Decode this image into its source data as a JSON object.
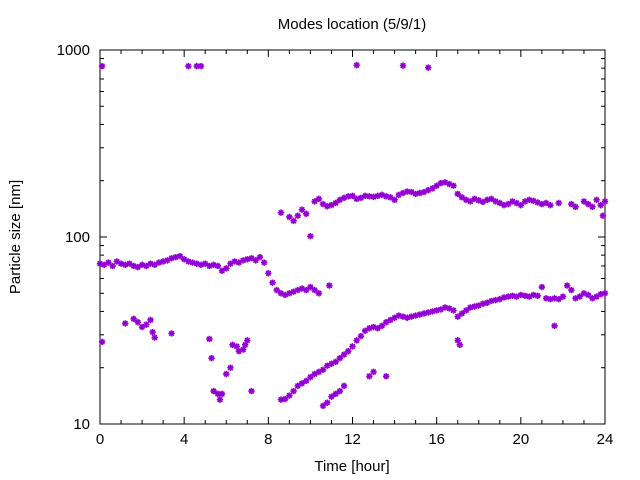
{
  "chart_data": {
    "type": "scatter",
    "title": "Modes location (5/9/1)",
    "xlabel": "Time [hour]",
    "ylabel": "Particle size [nm]",
    "xlim": [
      0,
      24
    ],
    "ylim": [
      10,
      1000
    ],
    "yscale": "log",
    "grid": false,
    "x_ticks": [
      0,
      4,
      8,
      12,
      16,
      20,
      24
    ],
    "y_ticks": [
      10,
      100,
      1000
    ],
    "x_tick_labels": [
      "0",
      "4",
      "8",
      "12",
      "16",
      "20",
      "24"
    ],
    "y_tick_labels": [
      "10",
      "100",
      "1000"
    ],
    "marker": "asterisk",
    "color": "#9400d3",
    "series": [
      {
        "points": [
          [
            0.0,
            72
          ],
          [
            0.2,
            71
          ],
          [
            0.4,
            73
          ],
          [
            0.6,
            70
          ],
          [
            0.8,
            74
          ],
          [
            1.0,
            72
          ],
          [
            1.2,
            71
          ],
          [
            1.4,
            72
          ],
          [
            1.6,
            70
          ],
          [
            1.8,
            69
          ],
          [
            2.0,
            71
          ],
          [
            2.2,
            70
          ],
          [
            2.4,
            72
          ],
          [
            2.6,
            71
          ],
          [
            2.8,
            73
          ],
          [
            3.0,
            74
          ],
          [
            3.2,
            75
          ],
          [
            3.4,
            77
          ],
          [
            3.6,
            78
          ],
          [
            3.8,
            79
          ],
          [
            4.0,
            76
          ],
          [
            4.2,
            74
          ],
          [
            4.4,
            73
          ],
          [
            4.6,
            72
          ],
          [
            4.8,
            71
          ],
          [
            5.0,
            72
          ],
          [
            5.2,
            70
          ],
          [
            5.4,
            71
          ],
          [
            5.6,
            70
          ],
          [
            5.8,
            66
          ],
          [
            6.0,
            68
          ],
          [
            6.2,
            72
          ],
          [
            6.4,
            74
          ],
          [
            6.6,
            73
          ],
          [
            6.8,
            75
          ],
          [
            7.0,
            76
          ],
          [
            7.2,
            77
          ],
          [
            7.4,
            75
          ],
          [
            7.6,
            78
          ],
          [
            7.8,
            73
          ],
          [
            8.0,
            64
          ],
          [
            8.2,
            57
          ],
          [
            8.4,
            52
          ],
          [
            8.6,
            50
          ],
          [
            8.8,
            49
          ],
          [
            9.0,
            50
          ],
          [
            9.2,
            51
          ],
          [
            9.4,
            52
          ],
          [
            9.6,
            53
          ],
          [
            9.8,
            52
          ],
          [
            10.0,
            54
          ],
          [
            10.2,
            52
          ],
          [
            10.4,
            50
          ],
          [
            10.9,
            55
          ]
        ]
      },
      {
        "points": [
          [
            8.6,
            135
          ],
          [
            9.0,
            128
          ],
          [
            9.2,
            122
          ],
          [
            9.4,
            130
          ],
          [
            9.6,
            140
          ],
          [
            9.8,
            133
          ],
          [
            10.0,
            101
          ],
          [
            10.2,
            155
          ],
          [
            10.4,
            160
          ],
          [
            10.6,
            150
          ],
          [
            10.8,
            146
          ],
          [
            11.0,
            148
          ],
          [
            11.2,
            152
          ],
          [
            11.4,
            158
          ],
          [
            11.6,
            162
          ],
          [
            11.8,
            165
          ],
          [
            12.0,
            166
          ],
          [
            12.2,
            160
          ],
          [
            12.4,
            162
          ],
          [
            12.6,
            166
          ],
          [
            12.8,
            165
          ],
          [
            13.0,
            164
          ],
          [
            13.2,
            166
          ],
          [
            13.4,
            168
          ],
          [
            13.6,
            165
          ],
          [
            13.8,
            163
          ],
          [
            14.0,
            158
          ],
          [
            14.2,
            168
          ],
          [
            14.4,
            172
          ],
          [
            14.6,
            175
          ],
          [
            14.8,
            174
          ],
          [
            15.0,
            170
          ],
          [
            15.2,
            172
          ],
          [
            15.4,
            174
          ],
          [
            15.6,
            178
          ],
          [
            15.8,
            182
          ],
          [
            16.0,
            188
          ],
          [
            16.2,
            194
          ],
          [
            16.4,
            196
          ],
          [
            16.6,
            192
          ],
          [
            16.8,
            188
          ],
          [
            17.0,
            170
          ],
          [
            17.2,
            163
          ],
          [
            17.4,
            158
          ],
          [
            17.6,
            155
          ],
          [
            17.8,
            160
          ],
          [
            18.0,
            157
          ],
          [
            18.2,
            154
          ],
          [
            18.4,
            158
          ],
          [
            18.6,
            160
          ],
          [
            18.8,
            155
          ],
          [
            19.0,
            152
          ],
          [
            19.2,
            148
          ],
          [
            19.4,
            150
          ],
          [
            19.6,
            155
          ],
          [
            19.8,
            152
          ],
          [
            20.0,
            148
          ],
          [
            20.2,
            155
          ],
          [
            20.4,
            158
          ],
          [
            20.6,
            156
          ],
          [
            20.8,
            153
          ],
          [
            21.0,
            150
          ],
          [
            21.2,
            152
          ],
          [
            21.4,
            148
          ],
          [
            21.8,
            152
          ],
          [
            22.4,
            150
          ],
          [
            22.6,
            145
          ],
          [
            23.0,
            155
          ],
          [
            23.2,
            150
          ],
          [
            23.4,
            145
          ],
          [
            23.6,
            158
          ],
          [
            23.8,
            148
          ],
          [
            23.9,
            130
          ],
          [
            24.0,
            155
          ]
        ]
      },
      {
        "points": [
          [
            8.6,
            13.5
          ],
          [
            8.8,
            13.6
          ],
          [
            9.0,
            14.2
          ],
          [
            9.2,
            15.0
          ],
          [
            9.4,
            16.0
          ],
          [
            9.6,
            16.5
          ],
          [
            9.8,
            17.0
          ],
          [
            10.0,
            17.8
          ],
          [
            10.2,
            18.5
          ],
          [
            10.4,
            19.0
          ],
          [
            10.6,
            19.5
          ],
          [
            10.8,
            20.5
          ],
          [
            11.0,
            21.0
          ],
          [
            11.2,
            21.5
          ],
          [
            11.4,
            22.5
          ],
          [
            11.6,
            23.5
          ],
          [
            11.8,
            24.5
          ],
          [
            12.0,
            26.0
          ],
          [
            12.2,
            28.0
          ],
          [
            12.4,
            29.5
          ],
          [
            12.6,
            31.5
          ],
          [
            12.8,
            32.5
          ],
          [
            13.0,
            33.0
          ],
          [
            13.2,
            32.5
          ],
          [
            13.4,
            33.5
          ],
          [
            13.6,
            35.0
          ],
          [
            13.8,
            36.0
          ],
          [
            14.0,
            37.0
          ],
          [
            14.2,
            38.0
          ],
          [
            14.4,
            37.5
          ],
          [
            14.6,
            37.0
          ],
          [
            14.8,
            37.5
          ],
          [
            15.0,
            38.0
          ],
          [
            15.2,
            38.5
          ],
          [
            15.4,
            39.0
          ],
          [
            15.6,
            39.5
          ],
          [
            15.8,
            40.0
          ],
          [
            16.0,
            40.5
          ],
          [
            16.2,
            41.0
          ],
          [
            16.4,
            42.0
          ],
          [
            16.6,
            41.5
          ],
          [
            16.8,
            40.5
          ],
          [
            17.0,
            37.5
          ],
          [
            17.2,
            39.0
          ],
          [
            17.4,
            40.5
          ],
          [
            17.6,
            42.0
          ],
          [
            17.8,
            42.5
          ],
          [
            18.0,
            43.0
          ],
          [
            18.2,
            44.0
          ],
          [
            18.4,
            44.5
          ],
          [
            18.6,
            45.5
          ],
          [
            18.8,
            46.0
          ],
          [
            19.0,
            46.5
          ],
          [
            19.2,
            47.5
          ],
          [
            19.4,
            48.0
          ],
          [
            19.6,
            48.5
          ],
          [
            19.8,
            48.0
          ],
          [
            20.0,
            49.0
          ],
          [
            20.2,
            48.5
          ],
          [
            20.4,
            48.0
          ],
          [
            20.6,
            49.0
          ],
          [
            20.8,
            48.5
          ],
          [
            21.0,
            54.0
          ],
          [
            21.2,
            47.0
          ],
          [
            21.4,
            46.5
          ],
          [
            21.6,
            47.0
          ],
          [
            21.8,
            46.5
          ],
          [
            22.0,
            48.0
          ],
          [
            22.2,
            55.0
          ],
          [
            22.4,
            52.0
          ],
          [
            22.6,
            47.0
          ],
          [
            22.8,
            48.0
          ],
          [
            23.0,
            50.0
          ],
          [
            23.2,
            49.0
          ],
          [
            23.4,
            47.0
          ],
          [
            23.6,
            48.0
          ],
          [
            23.8,
            49.5
          ],
          [
            24.0,
            50.0
          ]
        ]
      },
      {
        "points": [
          [
            0.1,
            27.5
          ],
          [
            1.2,
            34.5
          ],
          [
            1.6,
            36.5
          ],
          [
            1.8,
            35.0
          ],
          [
            2.0,
            33.0
          ],
          [
            2.2,
            34.0
          ],
          [
            2.4,
            36.0
          ],
          [
            2.5,
            31.0
          ],
          [
            2.6,
            29.0
          ],
          [
            3.4,
            30.5
          ],
          [
            5.2,
            28.5
          ],
          [
            5.3,
            22.5
          ],
          [
            5.4,
            15.0
          ],
          [
            5.6,
            14.5
          ],
          [
            5.7,
            13.5
          ],
          [
            5.8,
            14.5
          ],
          [
            6.0,
            18.5
          ],
          [
            6.2,
            20.0
          ],
          [
            6.3,
            26.5
          ],
          [
            6.5,
            26.0
          ],
          [
            6.6,
            24.5
          ],
          [
            6.8,
            25.0
          ],
          [
            6.9,
            26.5
          ],
          [
            7.0,
            28.0
          ],
          [
            7.2,
            15.0
          ],
          [
            10.6,
            12.5
          ],
          [
            10.8,
            13.0
          ],
          [
            11.0,
            14.0
          ],
          [
            11.2,
            14.5
          ],
          [
            11.4,
            15.0
          ],
          [
            11.6,
            16.0
          ],
          [
            12.8,
            18.0
          ],
          [
            13.0,
            19.0
          ],
          [
            13.6,
            18.0
          ],
          [
            17.0,
            28.0
          ],
          [
            17.1,
            26.5
          ],
          [
            21.6,
            33.5
          ]
        ]
      },
      {
        "points": [
          [
            0.1,
            820
          ],
          [
            4.2,
            820
          ],
          [
            4.6,
            820
          ],
          [
            4.8,
            820
          ],
          [
            12.2,
            830
          ],
          [
            14.4,
            825
          ],
          [
            15.6,
            805
          ]
        ]
      }
    ]
  }
}
